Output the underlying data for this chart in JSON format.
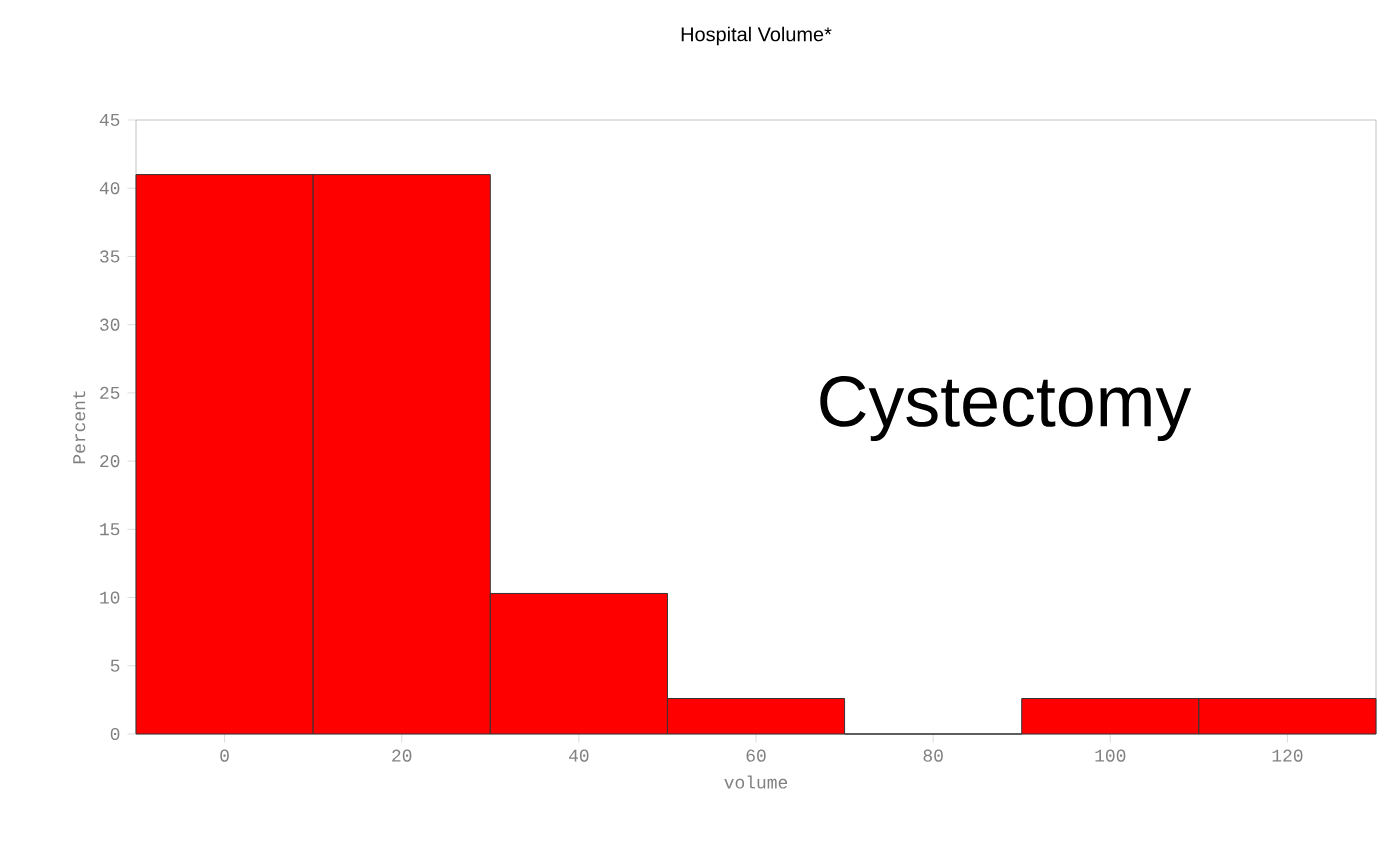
{
  "chart_data": {
    "type": "histogram",
    "title": "Hospital Volume*",
    "xlabel": "volume",
    "ylabel": "Percent",
    "bins": [
      -10,
      10,
      30,
      50,
      70,
      90,
      110,
      130
    ],
    "values": [
      41,
      41,
      10.3,
      2.6,
      0,
      2.6,
      2.6
    ],
    "color": "#ff0000",
    "xlim": [
      -10,
      130
    ],
    "xticks": [
      0,
      20,
      40,
      60,
      80,
      100,
      120
    ],
    "ylim": [
      0,
      45
    ],
    "yticks": [
      0,
      5,
      10,
      15,
      20,
      25,
      30,
      35,
      40,
      45
    ],
    "grid": false,
    "annotations": [
      "Cystectomy"
    ]
  }
}
